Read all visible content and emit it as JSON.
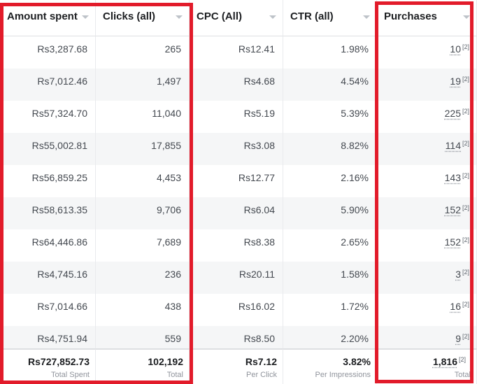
{
  "columns": [
    {
      "label": "Amount spent",
      "footer_value": "Rs727,852.73",
      "footer_label": "Total Spent",
      "values": [
        "Rs3,287.68",
        "Rs7,012.46",
        "Rs57,324.70",
        "Rs55,002.81",
        "Rs56,859.25",
        "Rs58,613.35",
        "Rs64,446.86",
        "Rs4,745.16",
        "Rs7,014.66",
        "Rs4,751.94"
      ]
    },
    {
      "label": "Clicks (all)",
      "footer_value": "102,192",
      "footer_label": "Total",
      "values": [
        "265",
        "1,497",
        "11,040",
        "17,855",
        "4,453",
        "9,706",
        "7,689",
        "236",
        "438",
        "559"
      ]
    },
    {
      "label": "CPC (All)",
      "footer_value": "Rs7.12",
      "footer_label": "Per Click",
      "values": [
        "Rs12.41",
        "Rs4.68",
        "Rs5.19",
        "Rs3.08",
        "Rs12.77",
        "Rs6.04",
        "Rs8.38",
        "Rs20.11",
        "Rs16.02",
        "Rs8.50"
      ]
    },
    {
      "label": "CTR (all)",
      "footer_value": "3.82%",
      "footer_label": "Per Impressions",
      "values": [
        "1.98%",
        "4.54%",
        "5.39%",
        "8.82%",
        "2.16%",
        "5.90%",
        "2.65%",
        "1.58%",
        "1.72%",
        "2.20%"
      ]
    },
    {
      "label": "Purchases",
      "footer_value": "1,816",
      "footer_label": "Total",
      "note": "[2]",
      "values": [
        "10",
        "19",
        "225",
        "114",
        "143",
        "152",
        "152",
        "3",
        "16",
        "9"
      ]
    }
  ],
  "colors": {
    "highlight": "#e21b2a",
    "alt_row": "#f5f6f7",
    "text": "#1c1e21"
  },
  "icons": {
    "header_sort": "caret-down-icon"
  }
}
